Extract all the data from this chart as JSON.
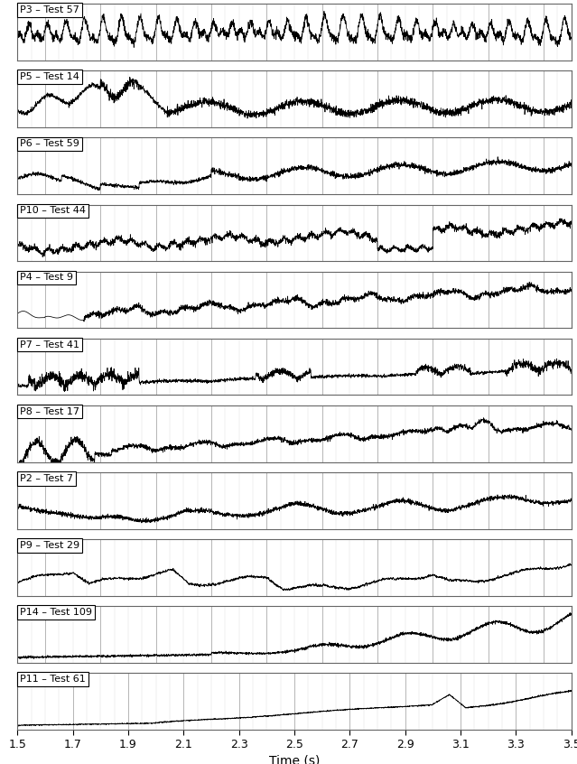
{
  "panels": [
    {
      "label": "P3 – Test 57",
      "style": "p3"
    },
    {
      "label": "P5 – Test 14",
      "style": "p5"
    },
    {
      "label": "P6 – Test 59",
      "style": "p6"
    },
    {
      "label": "P10 – Test 44",
      "style": "p10"
    },
    {
      "label": "P4 – Test 9",
      "style": "p4"
    },
    {
      "label": "P7 – Test 41",
      "style": "p7"
    },
    {
      "label": "P8 – Test 17",
      "style": "p8"
    },
    {
      "label": "P2 – Test 7",
      "style": "p2"
    },
    {
      "label": "P9 – Test 29",
      "style": "p9"
    },
    {
      "label": "P14 – Test 109",
      "style": "p14"
    },
    {
      "label": "P11 – Test 61",
      "style": "p11"
    }
  ],
  "xmin": 1.5,
  "xmax": 3.5,
  "xticks": [
    1.5,
    1.7,
    1.9,
    2.1,
    2.3,
    2.5,
    2.7,
    2.9,
    3.1,
    3.3,
    3.5
  ],
  "xlabel": "Time (s)",
  "bg_color": "#ffffff",
  "grid_major_color": "#aaaaaa",
  "grid_minor_color": "#dddddd",
  "line_color": "black",
  "label_box_color": "white",
  "figsize": [
    6.39,
    8.46
  ],
  "dpi": 100
}
